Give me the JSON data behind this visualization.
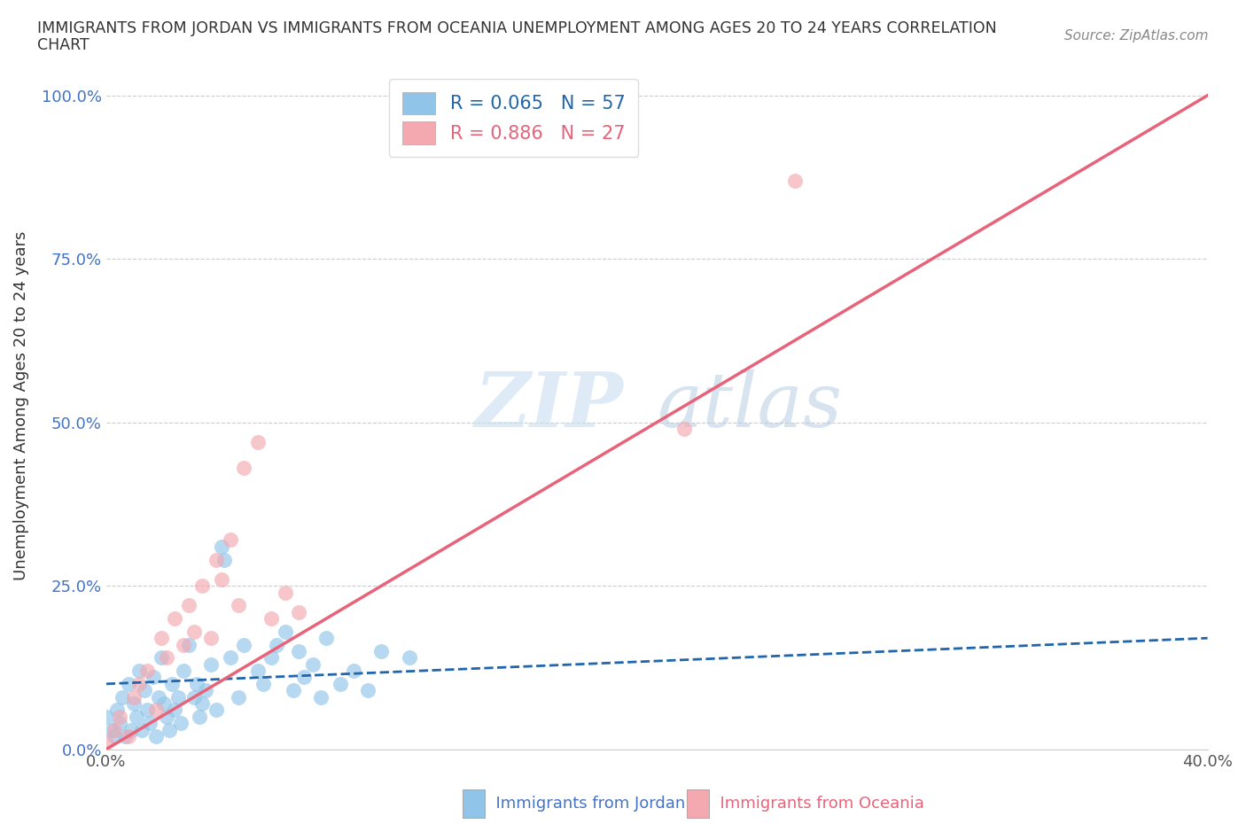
{
  "title_line1": "IMMIGRANTS FROM JORDAN VS IMMIGRANTS FROM OCEANIA UNEMPLOYMENT AMONG AGES 20 TO 24 YEARS CORRELATION",
  "title_line2": "CHART",
  "source_text": "Source: ZipAtlas.com",
  "ylabel": "Unemployment Among Ages 20 to 24 years",
  "xlabel_jordan": "Immigrants from Jordan",
  "xlabel_oceania": "Immigrants from Oceania",
  "xlim": [
    0.0,
    0.4
  ],
  "ylim": [
    0.0,
    1.05
  ],
  "jordan_color": "#90c4e8",
  "oceania_color": "#f4a8b0",
  "jordan_line_color": "#2166ac",
  "oceania_line_color": "#e8637a",
  "R_jordan": 0.065,
  "N_jordan": 57,
  "R_oceania": 0.886,
  "N_oceania": 27,
  "watermark_ZIP": "ZIP",
  "watermark_atlas": "atlas",
  "jordan_scatter_x": [
    0.0,
    0.002,
    0.003,
    0.004,
    0.005,
    0.006,
    0.007,
    0.008,
    0.009,
    0.01,
    0.011,
    0.012,
    0.013,
    0.014,
    0.015,
    0.016,
    0.017,
    0.018,
    0.019,
    0.02,
    0.021,
    0.022,
    0.023,
    0.024,
    0.025,
    0.026,
    0.027,
    0.028,
    0.03,
    0.032,
    0.033,
    0.034,
    0.035,
    0.036,
    0.038,
    0.04,
    0.042,
    0.043,
    0.045,
    0.048,
    0.05,
    0.055,
    0.057,
    0.06,
    0.062,
    0.065,
    0.068,
    0.07,
    0.072,
    0.075,
    0.078,
    0.08,
    0.085,
    0.09,
    0.095,
    0.1,
    0.11
  ],
  "jordan_scatter_y": [
    0.05,
    0.03,
    0.02,
    0.06,
    0.04,
    0.08,
    0.02,
    0.1,
    0.03,
    0.07,
    0.05,
    0.12,
    0.03,
    0.09,
    0.06,
    0.04,
    0.11,
    0.02,
    0.08,
    0.14,
    0.07,
    0.05,
    0.03,
    0.1,
    0.06,
    0.08,
    0.04,
    0.12,
    0.16,
    0.08,
    0.1,
    0.05,
    0.07,
    0.09,
    0.13,
    0.06,
    0.31,
    0.29,
    0.14,
    0.08,
    0.16,
    0.12,
    0.1,
    0.14,
    0.16,
    0.18,
    0.09,
    0.15,
    0.11,
    0.13,
    0.08,
    0.17,
    0.1,
    0.12,
    0.09,
    0.15,
    0.14
  ],
  "oceania_scatter_x": [
    0.0,
    0.003,
    0.005,
    0.008,
    0.01,
    0.012,
    0.015,
    0.018,
    0.02,
    0.022,
    0.025,
    0.028,
    0.03,
    0.032,
    0.035,
    0.038,
    0.04,
    0.042,
    0.045,
    0.048,
    0.05,
    0.055,
    0.06,
    0.065,
    0.07,
    0.21,
    0.25
  ],
  "oceania_scatter_y": [
    0.01,
    0.03,
    0.05,
    0.02,
    0.08,
    0.1,
    0.12,
    0.06,
    0.17,
    0.14,
    0.2,
    0.16,
    0.22,
    0.18,
    0.25,
    0.17,
    0.29,
    0.26,
    0.32,
    0.22,
    0.43,
    0.47,
    0.2,
    0.24,
    0.21,
    0.49,
    0.87
  ],
  "jordan_regline_x": [
    0.0,
    0.4
  ],
  "jordan_regline_y": [
    0.1,
    0.17
  ],
  "oceania_regline_x": [
    0.0,
    0.4
  ],
  "oceania_regline_y": [
    0.0,
    1.0
  ],
  "y_ticks": [
    0.0,
    0.25,
    0.5,
    0.75,
    1.0
  ],
  "y_tick_labels": [
    "0.0%",
    "25.0%",
    "50.0%",
    "75.0%",
    "100.0%"
  ],
  "x_ticks": [
    0.0,
    0.1,
    0.2,
    0.3,
    0.4
  ],
  "x_tick_labels": [
    "0.0%",
    "",
    "",
    "",
    "40.0%"
  ]
}
